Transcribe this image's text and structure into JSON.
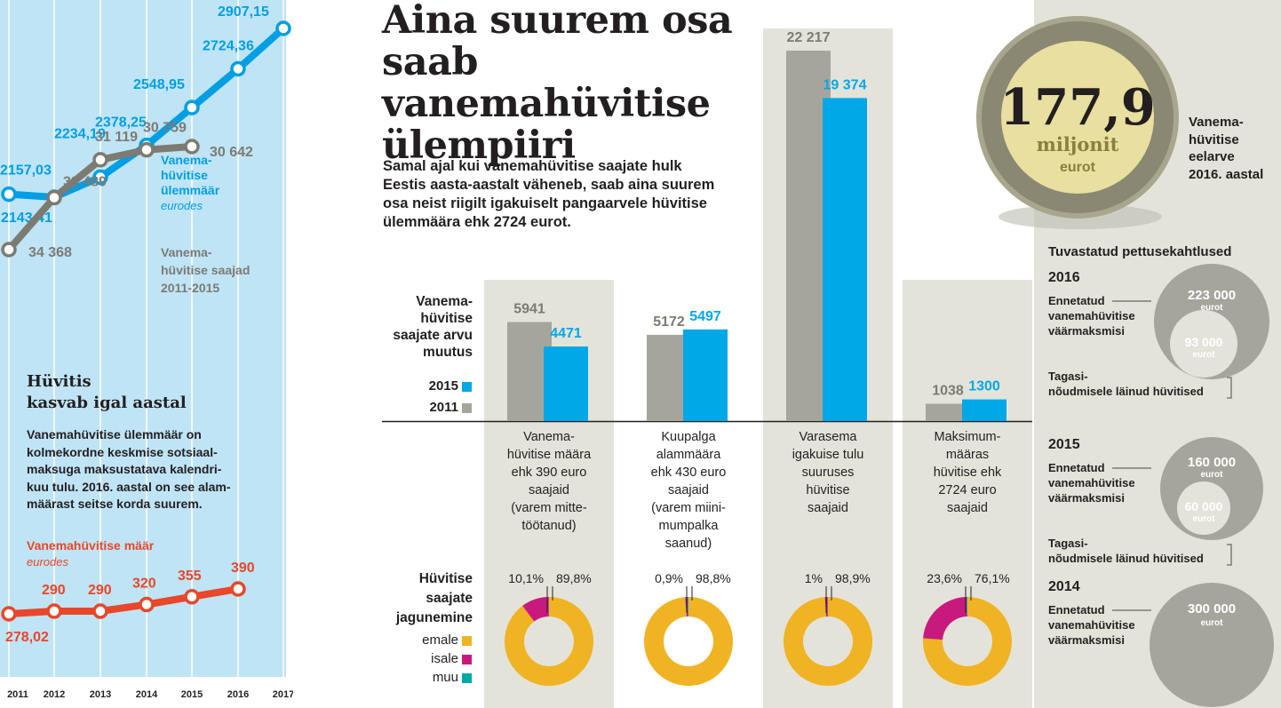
{
  "left_panel": {
    "years": [
      "2011",
      "2012",
      "2013",
      "2014",
      "2015",
      "2016",
      "2017"
    ],
    "max_rate": {
      "label_line1": "Vanema-",
      "label_line2": "hüvitise",
      "label_line3": "ülemmäär",
      "unit": "eurodes",
      "values": [
        2157.03,
        2143.41,
        2234.19,
        2378.25,
        2548.95,
        2724.36,
        2907.15
      ],
      "value_labels": [
        "2157,03",
        "2143,41",
        "2234,19",
        "2378,25",
        "2548,95",
        "2724,36",
        "2907,15"
      ],
      "color": "#009fe3"
    },
    "recipients": {
      "label_line1": "Vanema-",
      "label_line2": "hüvitise saajad",
      "label_line3": "2011-2015",
      "values": [
        34368,
        32489,
        31119,
        30759,
        30642
      ],
      "value_labels": [
        "34 368",
        "32 489",
        "31 119",
        "30 759",
        "30 642"
      ],
      "color": "#7c7b72"
    },
    "heading_line1": "Hüvitis",
    "heading_line2": "kasvab igal aastal",
    "body_lines": [
      "Vanemahüvitise ülemmäär on",
      "kolmekordne keskmise sotsiaal-",
      "maksuga maksustatava kalendri-",
      "kuu tulu. 2016. aastal on see alam-",
      "määrast seitse korda suurem."
    ],
    "base_rate": {
      "label": "Vanemahüvitise määr",
      "unit": "eurodes",
      "values": [
        278.02,
        290,
        290,
        320,
        355,
        390
      ],
      "value_labels": [
        "278,02",
        "290",
        "290",
        "320",
        "355",
        "390"
      ],
      "color": "#e8472a"
    }
  },
  "title_lines": [
    "Aina suurem osa",
    "saab vanemahüvitise",
    "ülempiiri"
  ],
  "intro_lines": [
    "Samal ajal kui vanemahüvitise saajate hulk",
    "Eestis aasta-aastalt väheneb, saab aina suurem",
    "osa neist riigilt igakuiselt pangaarvele hüvitise",
    "ülemmäära ehk 2724 eurot."
  ],
  "bar_section": {
    "title_lines": [
      "Vanema-",
      "hüvitise",
      "saajate arvu",
      "muutus"
    ],
    "legend": [
      {
        "label": "2015",
        "color": "#00a8e8"
      },
      {
        "label": "2011",
        "color": "#a6a59c"
      }
    ]
  },
  "dist_section": {
    "title_lines": [
      "Hüvitise",
      "saajate",
      "jagunemine"
    ],
    "legend": [
      {
        "label": "emale",
        "color": "#f0b323"
      },
      {
        "label": "isale",
        "color": "#c81a7e"
      },
      {
        "label": "muu",
        "color": "#00a8a8"
      }
    ]
  },
  "chart_data": [
    {
      "type": "line",
      "title": "Vanemahüvitise ülemmäär",
      "ylabel": "eurodes",
      "x": [
        "2011",
        "2012",
        "2013",
        "2014",
        "2015",
        "2016",
        "2017"
      ],
      "series": [
        {
          "name": "Vanemahüvitise ülemmäär",
          "values": [
            2157.03,
            2143.41,
            2234.19,
            2378.25,
            2548.95,
            2724.36,
            2907.15
          ]
        }
      ]
    },
    {
      "type": "line",
      "title": "Vanemahüvitise saajad 2011-2015",
      "x": [
        "2011",
        "2012",
        "2013",
        "2014",
        "2015"
      ],
      "series": [
        {
          "name": "Vanemahüvitise saajad",
          "values": [
            34368,
            32489,
            31119,
            30759,
            30642
          ]
        }
      ]
    },
    {
      "type": "line",
      "title": "Vanemahüvitise määr",
      "ylabel": "eurodes",
      "x": [
        "2011",
        "2012",
        "2013",
        "2014",
        "2015",
        "2016"
      ],
      "series": [
        {
          "name": "Vanemahüvitise määr",
          "values": [
            278.02,
            290,
            290,
            320,
            355,
            390
          ]
        }
      ]
    },
    {
      "type": "bar",
      "title": "Vanemahüvitise saajate arvu muutus",
      "categories": [
        "Vanemahüvitise määra ehk 390 euro saajaid (varem mittetöötanud)",
        "Kuupalga alammäära ehk 430 euro saajaid (varem miinimumpalka saanud)",
        "Varasema igakuise tulu suuruses hüvitise saajaid",
        "Maksimummääras hüvitise ehk 2724 euro saajaid"
      ],
      "series": [
        {
          "name": "2011",
          "values": [
            5941,
            5172,
            22217,
            1038
          ],
          "labels": [
            "5941",
            "5172",
            "22 217",
            "1038"
          ]
        },
        {
          "name": "2015",
          "values": [
            4471,
            5497,
            19374,
            1300
          ],
          "labels": [
            "4471",
            "5497",
            "19 374",
            "1300"
          ]
        }
      ],
      "category_labels": [
        [
          "Vanema-",
          "hüvitise määra",
          "ehk 390 euro",
          "saajaid",
          "(varem mitte-",
          "töötanud)"
        ],
        [
          "Kuupalga",
          "alammäära",
          "ehk 430 euro",
          "saajaid",
          "(varem miini-",
          "mumpalka",
          "saanud)"
        ],
        [
          "Varasema",
          "igakuise tulu",
          "suuruses",
          "hüvitise",
          "saajaid"
        ],
        [
          "Maksimum-",
          "määras",
          "hüvitise ehk",
          "2724 euro",
          "saajaid"
        ]
      ]
    },
    {
      "type": "pie",
      "title": "Hüvitise saajate jagunemine",
      "groups": [
        {
          "isale": 10.1,
          "emale": 89.8,
          "labels": [
            "10,1%",
            "89,8%"
          ]
        },
        {
          "isale": 0.9,
          "emale": 98.8,
          "labels": [
            "0,9%",
            "98,8%"
          ]
        },
        {
          "isale": 1,
          "emale": 98.9,
          "labels": [
            "1%",
            "98,9%"
          ]
        },
        {
          "isale": 23.6,
          "emale": 76.1,
          "labels": [
            "23,6%",
            "76,1%"
          ]
        }
      ]
    }
  ],
  "coin": {
    "value": "177,9",
    "unit": "miljonit",
    "currency": "eurot",
    "note_lines": [
      "Vanema-",
      "hüvitise",
      "eelarve",
      "2016. aastal"
    ]
  },
  "fraud": {
    "title": "Tuvastatud pettusekahtlused",
    "prevented_lines": [
      "Ennetatud",
      "vanemahüvitise",
      "väärmaksmisi"
    ],
    "reclaimed_lines": [
      "Tagasi-",
      "nõudmisele läinud hüvitised"
    ],
    "unit": "eurot",
    "years": [
      {
        "year": "2016",
        "prevented": "223 000",
        "reclaimed": "93 000"
      },
      {
        "year": "2015",
        "prevented": "160 000",
        "reclaimed": "60 000"
      },
      {
        "year": "2014",
        "prevented": "300 000",
        "reclaimed": null
      }
    ]
  }
}
